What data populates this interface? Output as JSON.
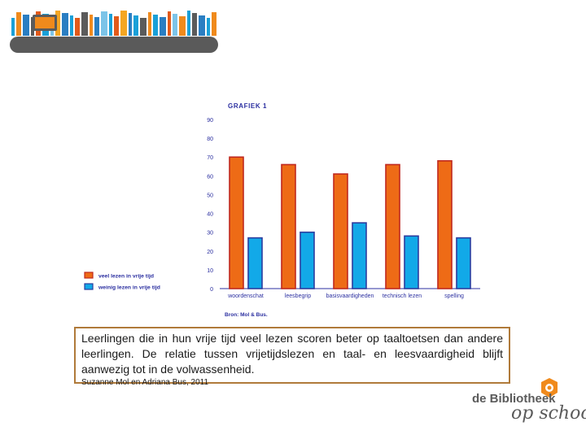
{
  "colors": {
    "orange": "#ee6b16",
    "orange_border": "#c0281e",
    "blue": "#12a9e8",
    "blue_border": "#2b3c9e",
    "axis": "#2b2fa0",
    "text_blue": "#2b2fa0",
    "caption_border": "#b07a3a"
  },
  "chart_data": {
    "type": "bar",
    "title": "GRAFIEK 1",
    "categories": [
      "woordenschat",
      "leesbegrip",
      "basisvaardigheden",
      "technisch lezen",
      "spelling"
    ],
    "series": [
      {
        "name": "veel lezen in vrije tijd",
        "values": [
          70,
          66,
          61,
          66,
          68
        ]
      },
      {
        "name": "weinig lezen in vrije tijd",
        "values": [
          27,
          30,
          35,
          28,
          27
        ]
      }
    ],
    "yticks": [
      0,
      10,
      20,
      30,
      40,
      50,
      60,
      70,
      80,
      90
    ],
    "ylim": [
      0,
      90
    ],
    "source": "Bron: Mol & Bus.",
    "legend_position": "left"
  },
  "caption": {
    "text": "Leerlingen die in hun vrije tijd veel lezen scoren beter op taaltoetsen dan andere leerlingen. De relatie tussen vrijetijdslezen en taal- en leesvaardigheid blijft aanwezig tot in de volwassenheid.",
    "source": "Suzanne Mol en Adriana Bus, 2011"
  },
  "logo": {
    "line1": "de Bibliotheek",
    "line2": "op school"
  },
  "banner": {
    "icon": "bookshelf-banner-icon"
  }
}
